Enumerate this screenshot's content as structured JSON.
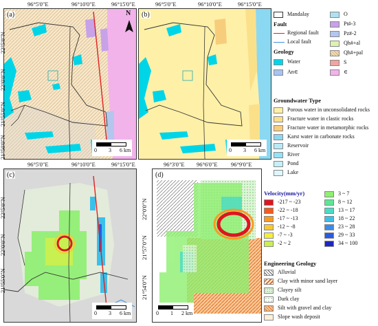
{
  "panels": {
    "a": {
      "label": "(a)",
      "scale": {
        "ticks": [
          "0",
          "3",
          "6 km"
        ]
      }
    },
    "b": {
      "label": "(b)",
      "scale": {
        "ticks": [
          "0",
          "3",
          "6 km"
        ]
      }
    },
    "c": {
      "label": "(c)",
      "scale": {
        "ticks": [
          "0",
          "3",
          "6 km"
        ]
      }
    },
    "d": {
      "label": "(d)",
      "scale": {
        "ticks": [
          "0",
          "1",
          "2 km"
        ]
      }
    }
  },
  "axes_top_ab_c": [
    "96°5'0\"E",
    "96°10'0\"E",
    "96°15'0\"E"
  ],
  "axes_left_abc_top": [
    "22°5'0\"N",
    "22°0'0\"N",
    "21°55'0\"N",
    "21°50'0\"N"
  ],
  "axes_left_c": [
    "22°5'0\"N",
    "22°0'0\"N",
    "21°55'0\"N"
  ],
  "axes_top_d": [
    "96°3'0\"E",
    "96°6'0\"E",
    "96°9'0\"E"
  ],
  "axes_left_d": [
    "22°0'0\"N",
    "21°57'0\"N",
    "21°54'0\"N"
  ],
  "north_arrow": "N",
  "legend_geology": {
    "mandalay": "Mandalay",
    "fault_title": "Fault",
    "regional_fault": "Regional fault",
    "local_fault": "Local fault",
    "geology_title": "Geology",
    "items_left": [
      "Water",
      "An∈"
    ],
    "items_right": [
      "O",
      "Pt#-3",
      "Pz#-2",
      "Qh#+al",
      "Qh#+pal",
      "S",
      "∈"
    ],
    "colors": {
      "mandalay": "#ffffff",
      "water": "#00d5e8",
      "an": "#a9c4f0",
      "o": "#aee2f2",
      "pt": "#c7a2e8",
      "pz": "#b2c6ee",
      "qhal": "#ddf3b0",
      "qhpal": "#f2dfb5",
      "s": "#f2a4a0",
      "cam": "#f2b3ea",
      "regional": "#e02020",
      "local": "#3f8fe0"
    }
  },
  "legend_groundwater": {
    "title": "Groundwater Type",
    "items": [
      "Porous water in unconsolidated rocks",
      "Fracture water in clastic rocks",
      "Fracture water in metamorphic rocks",
      "Karst water in carbonate rocks",
      "Reservoir",
      "River",
      "Pond",
      "Lake"
    ],
    "colors": [
      "#fff0a8",
      "#fbe08a",
      "#f7cd7c",
      "#8ad8f2",
      "#b8eaf6",
      "#92e2f8",
      "#c4f0f8",
      "#dff6fb"
    ]
  },
  "legend_velocity": {
    "title": "Velocity(mm/yr)",
    "left": [
      "-217 ~ -23",
      "-22 ~ -18",
      "-17 ~ -13",
      "-12 ~ -8",
      "-7 ~ -3",
      "-2 ~ 2"
    ],
    "right": [
      "3 ~ 7",
      "8 ~ 12",
      "13 ~ 17",
      "18 ~ 22",
      "23 ~ 28",
      "29 ~ 33",
      "34 ~ 100"
    ],
    "left_colors": [
      "#e0141e",
      "#f25a1e",
      "#f79a24",
      "#fac832",
      "#f5ef3c",
      "#c8f050"
    ],
    "right_colors": [
      "#8ef070",
      "#5ae896",
      "#4adcc6",
      "#3cc0ea",
      "#3a8cea",
      "#2c5ae0",
      "#1e28c0"
    ]
  },
  "legend_engineering": {
    "title": "Engineering Geology",
    "items": [
      "Alluvial",
      "Clay with minor sand layer",
      "Clayey silt",
      "Dark clay",
      "Silt with gravel and clay",
      "Slope wash deposit"
    ]
  }
}
